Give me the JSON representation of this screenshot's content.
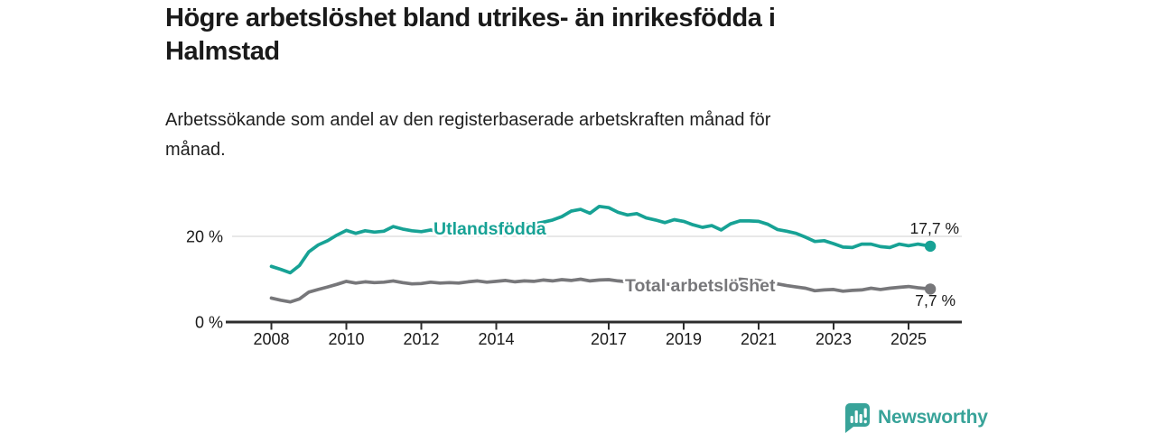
{
  "header": {
    "title_lines": [
      "Högre arbetslöshet bland utrikes- än inrikesfödda i",
      "Halmstad"
    ],
    "subtitle_lines": [
      "Arbetssökande som andel av den registerbaserade arbetskraften månad för",
      "månad."
    ]
  },
  "colors": {
    "accent_teal": "#17a295",
    "line_gray": "#77777a",
    "text_dark": "#1a1a1a",
    "gridline": "#d9d9d9",
    "axis": "#2d2d2d",
    "logo_teal": "#38a399"
  },
  "chart_data": {
    "type": "line",
    "unit": "%",
    "ylim": [
      0,
      28
    ],
    "x_range": [
      2008,
      2025.58
    ],
    "grid": "horizontal-at-20-only",
    "legend_position": "inline-on-lines",
    "y_ticks": [
      {
        "value": 20,
        "label": "20 %"
      },
      {
        "value": 0,
        "label": "0 %"
      }
    ],
    "x_ticks": [
      {
        "year": 2008,
        "label": "2008"
      },
      {
        "year": 2010,
        "label": "2010"
      },
      {
        "year": 2012,
        "label": "2012"
      },
      {
        "year": 2014,
        "label": "2014"
      },
      {
        "year": 2017,
        "label": "2017"
      },
      {
        "year": 2019,
        "label": "2019"
      },
      {
        "year": 2021,
        "label": "2021"
      },
      {
        "year": 2023,
        "label": "2023"
      },
      {
        "year": 2025,
        "label": "2025"
      }
    ],
    "series": [
      {
        "name": "Utlandsfödda",
        "label": "Utlandsfödda",
        "color": "#17a295",
        "end_value": 17.7,
        "end_value_label": "17,7 %",
        "points": [
          [
            2008.0,
            13.0
          ],
          [
            2008.25,
            12.3
          ],
          [
            2008.5,
            11.5
          ],
          [
            2008.75,
            13.2
          ],
          [
            2009.0,
            16.4
          ],
          [
            2009.25,
            18.0
          ],
          [
            2009.5,
            19.0
          ],
          [
            2009.75,
            20.3
          ],
          [
            2010.0,
            21.4
          ],
          [
            2010.25,
            20.7
          ],
          [
            2010.5,
            21.3
          ],
          [
            2010.75,
            21.0
          ],
          [
            2011.0,
            21.2
          ],
          [
            2011.25,
            22.3
          ],
          [
            2011.5,
            21.7
          ],
          [
            2011.75,
            21.3
          ],
          [
            2012.0,
            21.1
          ],
          [
            2012.25,
            21.5
          ],
          [
            2012.5,
            21.0
          ],
          [
            2012.75,
            21.3
          ],
          [
            2013.0,
            21.0
          ],
          [
            2013.25,
            21.4
          ],
          [
            2013.5,
            21.7
          ],
          [
            2013.75,
            21.9
          ],
          [
            2014.0,
            22.1
          ],
          [
            2014.25,
            22.4
          ],
          [
            2014.5,
            22.2
          ],
          [
            2014.75,
            22.6
          ],
          [
            2015.0,
            22.9
          ],
          [
            2015.25,
            23.3
          ],
          [
            2015.5,
            23.8
          ],
          [
            2015.75,
            24.6
          ],
          [
            2016.0,
            25.9
          ],
          [
            2016.25,
            26.3
          ],
          [
            2016.5,
            25.4
          ],
          [
            2016.75,
            27.0
          ],
          [
            2017.0,
            26.7
          ],
          [
            2017.25,
            25.6
          ],
          [
            2017.5,
            25.0
          ],
          [
            2017.75,
            25.3
          ],
          [
            2018.0,
            24.3
          ],
          [
            2018.25,
            23.8
          ],
          [
            2018.5,
            23.2
          ],
          [
            2018.75,
            23.9
          ],
          [
            2019.0,
            23.5
          ],
          [
            2019.25,
            22.7
          ],
          [
            2019.5,
            22.1
          ],
          [
            2019.75,
            22.5
          ],
          [
            2020.0,
            21.5
          ],
          [
            2020.25,
            22.9
          ],
          [
            2020.5,
            23.6
          ],
          [
            2020.75,
            23.6
          ],
          [
            2021.0,
            23.5
          ],
          [
            2021.25,
            22.8
          ],
          [
            2021.5,
            21.6
          ],
          [
            2021.75,
            21.2
          ],
          [
            2022.0,
            20.7
          ],
          [
            2022.25,
            19.8
          ],
          [
            2022.5,
            18.8
          ],
          [
            2022.75,
            19.0
          ],
          [
            2023.0,
            18.3
          ],
          [
            2023.25,
            17.5
          ],
          [
            2023.5,
            17.4
          ],
          [
            2023.75,
            18.2
          ],
          [
            2024.0,
            18.2
          ],
          [
            2024.25,
            17.6
          ],
          [
            2024.5,
            17.4
          ],
          [
            2024.75,
            18.2
          ],
          [
            2025.0,
            17.8
          ],
          [
            2025.25,
            18.2
          ],
          [
            2025.58,
            17.7
          ]
        ]
      },
      {
        "name": "Total arbetslöshet",
        "label": "Total arbetslöshet",
        "color": "#77777a",
        "end_value": 7.7,
        "end_value_label": "7,7 %",
        "points": [
          [
            2008.0,
            5.6
          ],
          [
            2008.25,
            5.1
          ],
          [
            2008.5,
            4.7
          ],
          [
            2008.75,
            5.4
          ],
          [
            2009.0,
            7.0
          ],
          [
            2009.25,
            7.6
          ],
          [
            2009.5,
            8.2
          ],
          [
            2009.75,
            8.8
          ],
          [
            2010.0,
            9.5
          ],
          [
            2010.25,
            9.1
          ],
          [
            2010.5,
            9.4
          ],
          [
            2010.75,
            9.2
          ],
          [
            2011.0,
            9.3
          ],
          [
            2011.25,
            9.6
          ],
          [
            2011.5,
            9.2
          ],
          [
            2011.75,
            8.9
          ],
          [
            2012.0,
            9.0
          ],
          [
            2012.25,
            9.3
          ],
          [
            2012.5,
            9.1
          ],
          [
            2012.75,
            9.2
          ],
          [
            2013.0,
            9.1
          ],
          [
            2013.25,
            9.4
          ],
          [
            2013.5,
            9.6
          ],
          [
            2013.75,
            9.3
          ],
          [
            2014.0,
            9.5
          ],
          [
            2014.25,
            9.7
          ],
          [
            2014.5,
            9.4
          ],
          [
            2014.75,
            9.6
          ],
          [
            2015.0,
            9.5
          ],
          [
            2015.25,
            9.8
          ],
          [
            2015.5,
            9.6
          ],
          [
            2015.75,
            9.9
          ],
          [
            2016.0,
            9.7
          ],
          [
            2016.25,
            10.0
          ],
          [
            2016.5,
            9.6
          ],
          [
            2016.75,
            9.8
          ],
          [
            2017.0,
            9.9
          ],
          [
            2017.25,
            9.6
          ],
          [
            2017.5,
            9.4
          ],
          [
            2017.75,
            9.2
          ],
          [
            2018.0,
            9.0
          ],
          [
            2018.25,
            9.2
          ],
          [
            2018.5,
            8.9
          ],
          [
            2018.75,
            8.7
          ],
          [
            2019.0,
            8.8
          ],
          [
            2019.25,
            9.0
          ],
          [
            2019.5,
            8.7
          ],
          [
            2019.75,
            8.6
          ],
          [
            2020.0,
            8.5
          ],
          [
            2020.25,
            9.6
          ],
          [
            2020.5,
            10.0
          ],
          [
            2020.75,
            9.8
          ],
          [
            2021.0,
            9.7
          ],
          [
            2021.25,
            9.3
          ],
          [
            2021.5,
            8.9
          ],
          [
            2021.75,
            8.5
          ],
          [
            2022.0,
            8.2
          ],
          [
            2022.25,
            7.9
          ],
          [
            2022.5,
            7.3
          ],
          [
            2022.75,
            7.5
          ],
          [
            2023.0,
            7.6
          ],
          [
            2023.25,
            7.2
          ],
          [
            2023.5,
            7.4
          ],
          [
            2023.75,
            7.5
          ],
          [
            2024.0,
            7.9
          ],
          [
            2024.25,
            7.6
          ],
          [
            2024.5,
            7.9
          ],
          [
            2024.75,
            8.1
          ],
          [
            2025.0,
            8.3
          ],
          [
            2025.25,
            8.0
          ],
          [
            2025.58,
            7.7
          ]
        ]
      }
    ]
  },
  "footer": {
    "brand": "Newsworthy"
  }
}
